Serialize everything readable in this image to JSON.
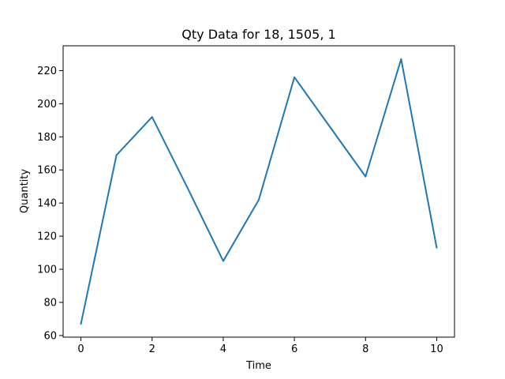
{
  "chart_data": {
    "type": "line",
    "title": "Qty Data for 18, 1505, 1",
    "xlabel": "Time",
    "ylabel": "Quantity",
    "x": [
      0,
      1,
      2,
      3,
      4,
      5,
      6,
      7,
      8,
      9,
      10
    ],
    "series": [
      {
        "name": "Quantity",
        "values": [
          67,
          169,
          192,
          149,
          105,
          142,
          216,
          186,
          156,
          227,
          113
        ],
        "color": "#1f77b4"
      }
    ],
    "xlim": [
      -0.5,
      10.5
    ],
    "ylim": [
      59,
      235
    ],
    "xticks": [
      0,
      2,
      4,
      6,
      8,
      10
    ],
    "yticks": [
      60,
      80,
      100,
      120,
      140,
      160,
      180,
      200,
      220
    ],
    "grid": false
  }
}
